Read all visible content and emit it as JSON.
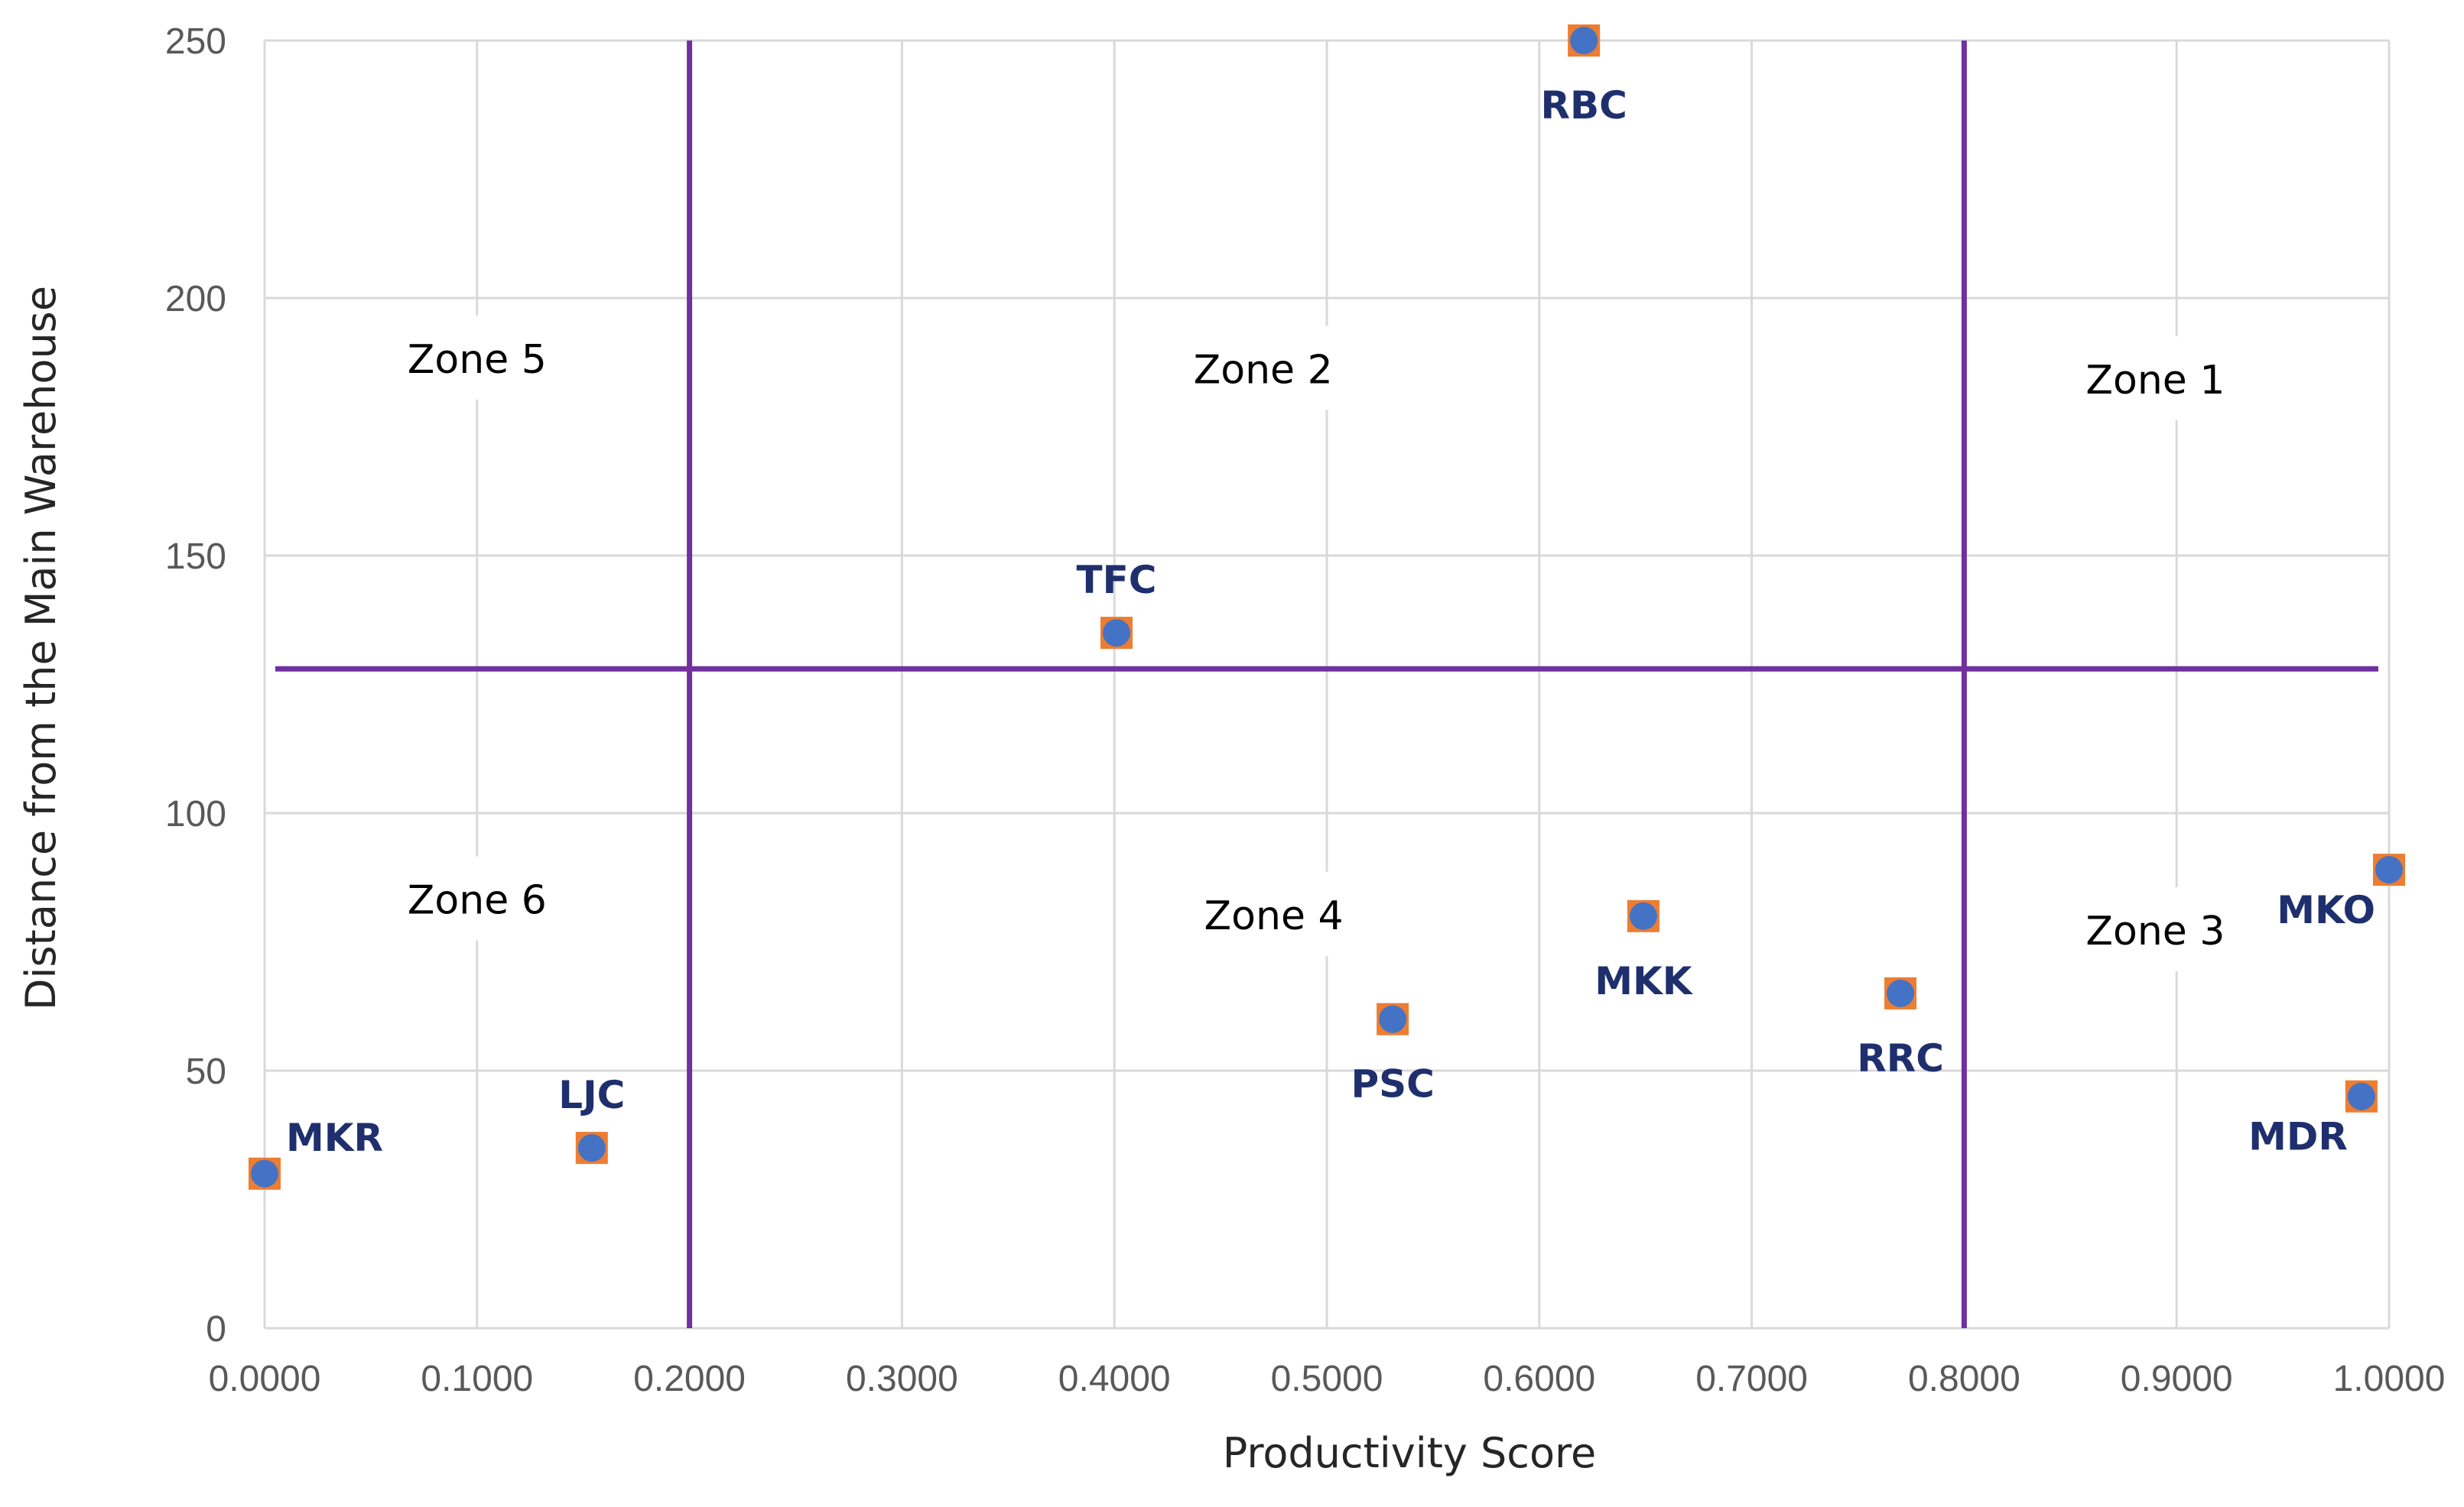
{
  "colors": {
    "marker_fill": "#4472c4",
    "marker_square": "#ed7d31",
    "divider_line": "#7030a0",
    "label_text": "#1f2f6e",
    "grid": "#d9d9d9"
  },
  "chart_data": {
    "type": "scatter",
    "title": "",
    "xlabel": "Productivity  Score",
    "ylabel": "Distance from the Main Warehouse",
    "xlim": [
      0,
      1
    ],
    "ylim": [
      0,
      250
    ],
    "x_ticks": [
      "0.0000",
      "0.1000",
      "0.2000",
      "0.3000",
      "0.4000",
      "0.5000",
      "0.6000",
      "0.7000",
      "0.8000",
      "0.9000",
      "1.0000"
    ],
    "y_ticks": [
      "0",
      "50",
      "100",
      "150",
      "200",
      "250"
    ],
    "grid": true,
    "divider_lines": {
      "x": [
        0.2,
        0.8
      ],
      "y": 128
    },
    "zones": [
      {
        "label": "Zone 5",
        "x": 0.1,
        "y": 188
      },
      {
        "label": "Zone 2",
        "x": 0.47,
        "y": 186
      },
      {
        "label": "Zone 1",
        "x": 0.89,
        "y": 184
      },
      {
        "label": "Zone 6",
        "x": 0.1,
        "y": 83
      },
      {
        "label": "Zone 4",
        "x": 0.475,
        "y": 80
      },
      {
        "label": "Zone 3",
        "x": 0.89,
        "y": 77
      }
    ],
    "points": [
      {
        "name": "MKR",
        "x": 0.0,
        "y": 30,
        "label_pos": "upper-right"
      },
      {
        "name": "LJC",
        "x": 0.154,
        "y": 35,
        "label_pos": "above"
      },
      {
        "name": "TFC",
        "x": 0.401,
        "y": 135,
        "label_pos": "above"
      },
      {
        "name": "PSC",
        "x": 0.531,
        "y": 60,
        "label_pos": "below"
      },
      {
        "name": "RBC",
        "x": 0.621,
        "y": 250,
        "label_pos": "below"
      },
      {
        "name": "MKK",
        "x": 0.649,
        "y": 80,
        "label_pos": "below"
      },
      {
        "name": "RRC",
        "x": 0.77,
        "y": 65,
        "label_pos": "below"
      },
      {
        "name": "MDR",
        "x": 0.987,
        "y": 45,
        "label_pos": "lower-left"
      },
      {
        "name": "MKO",
        "x": 1.0,
        "y": 89,
        "label_pos": "lower-left"
      }
    ]
  }
}
